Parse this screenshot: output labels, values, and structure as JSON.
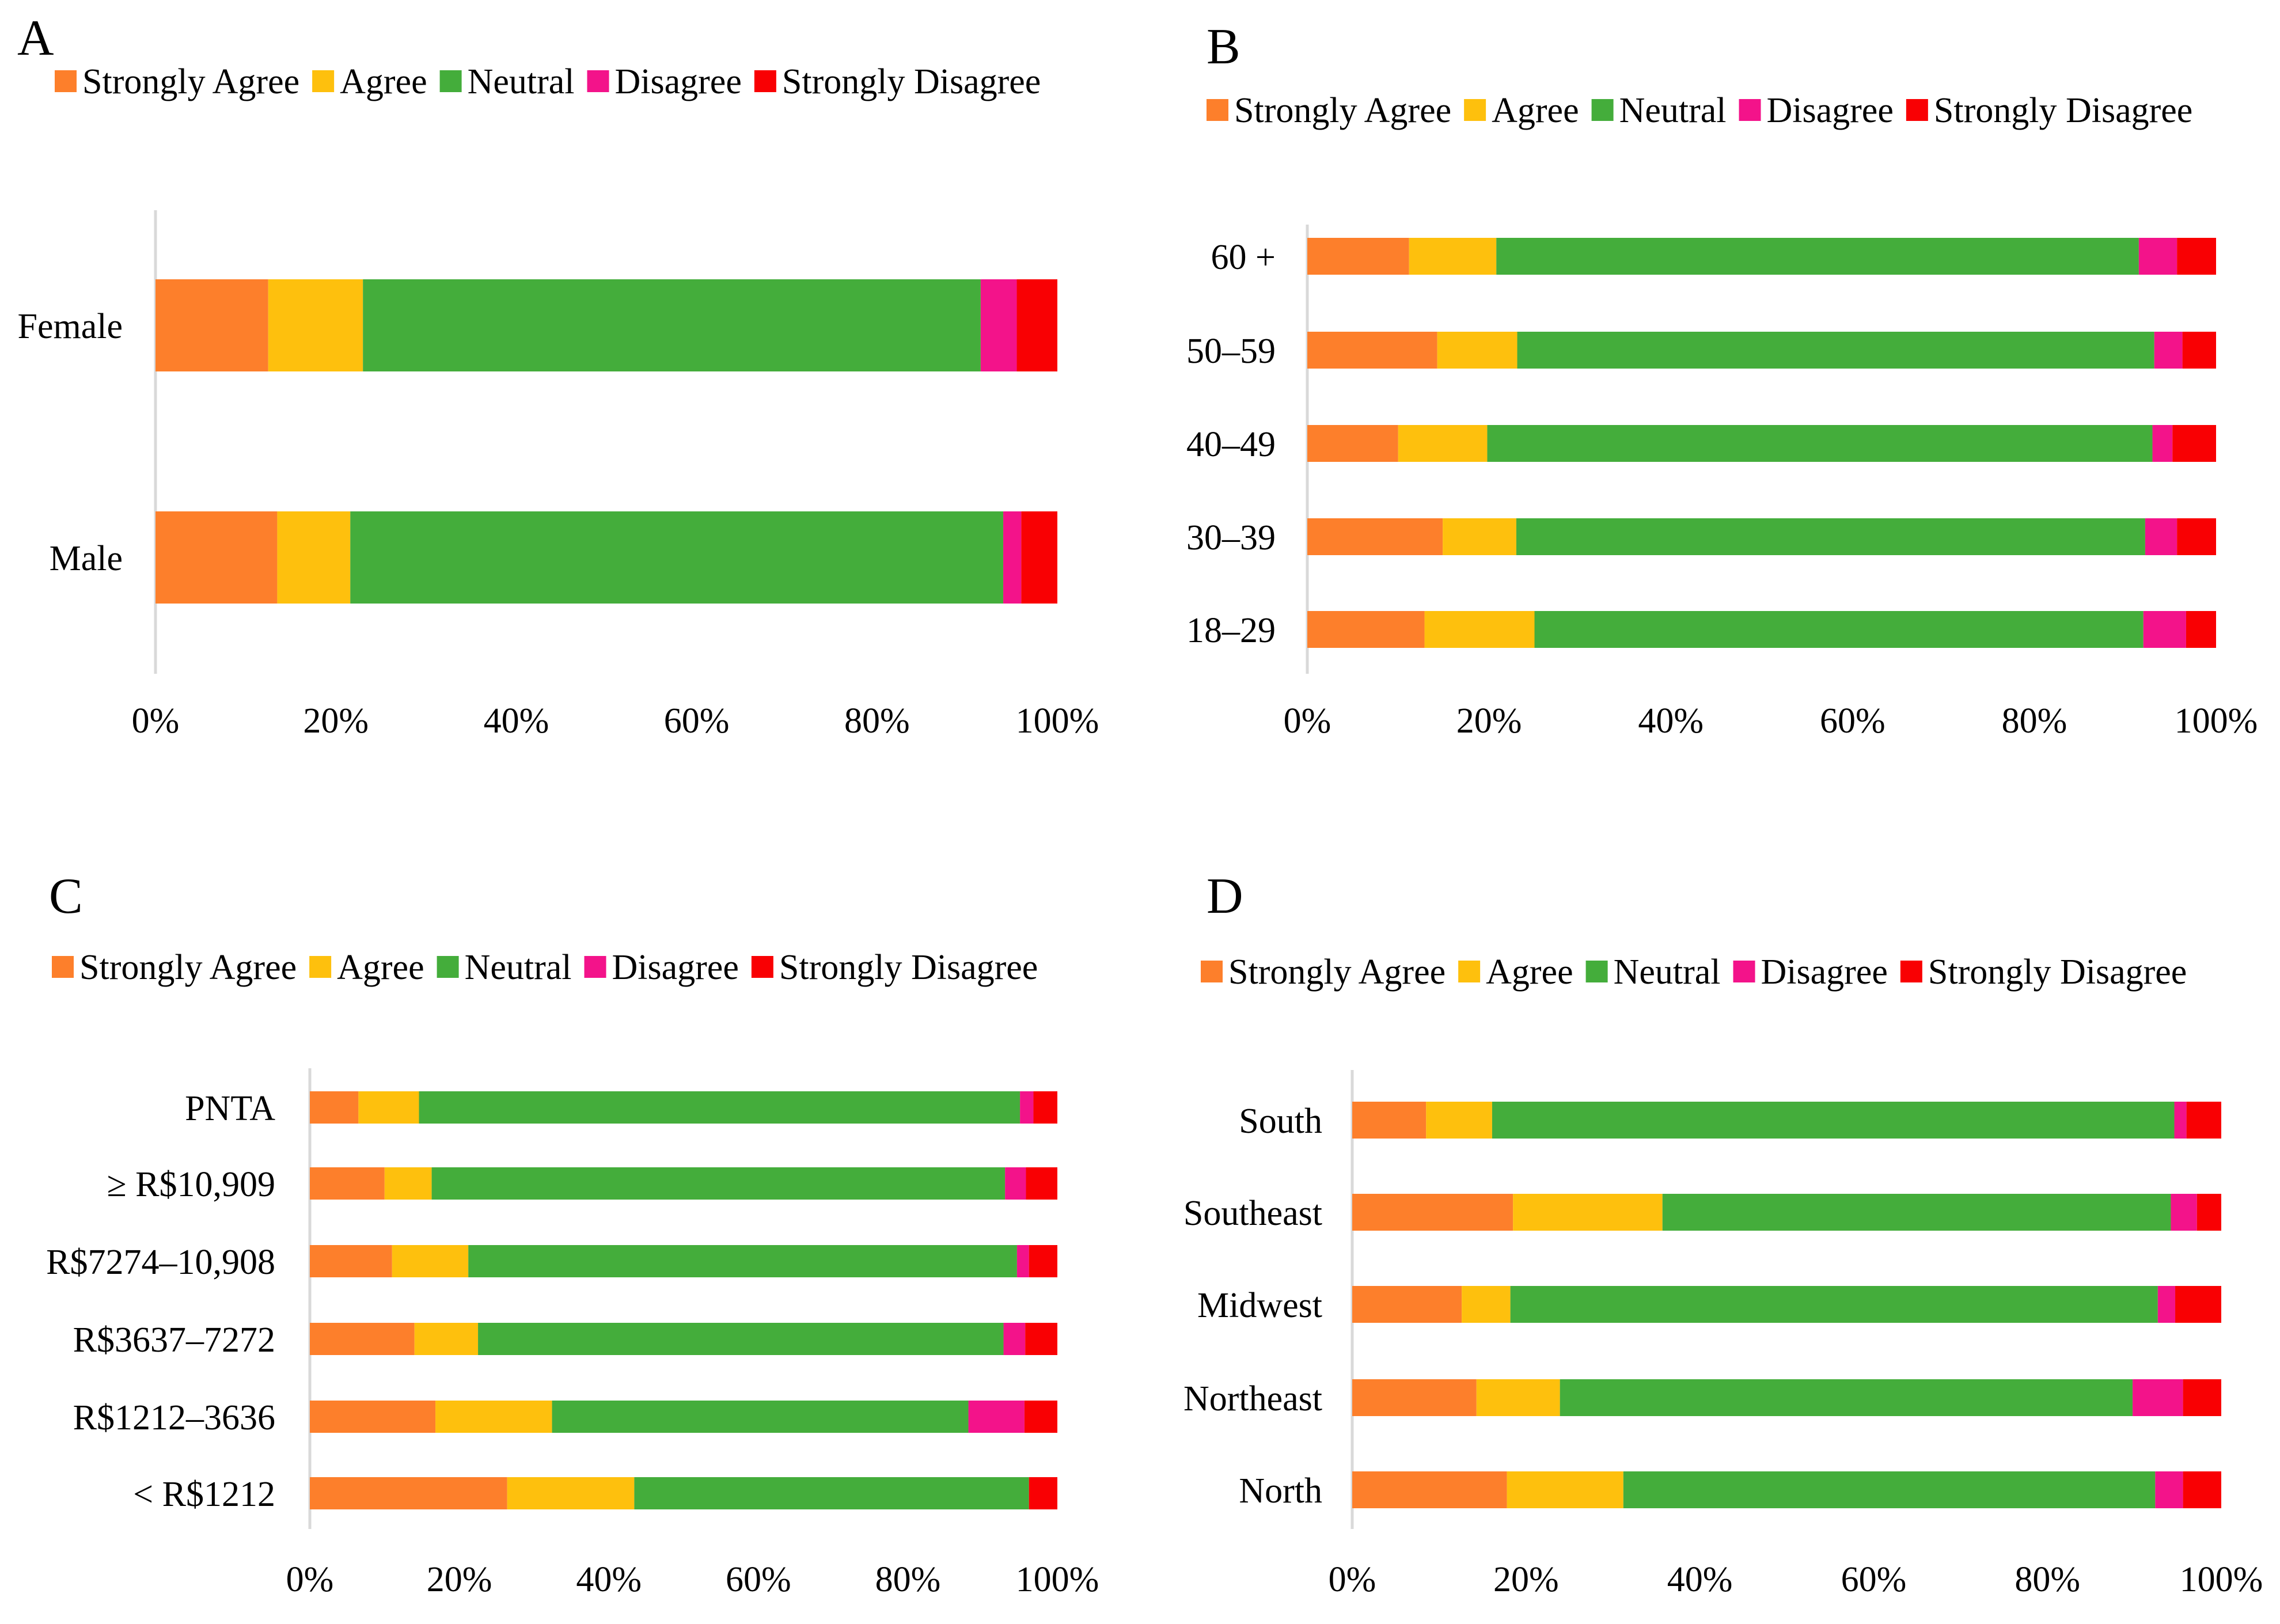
{
  "colors": {
    "Strongly Agree": "#fd7f2b",
    "Agree": "#fec00d",
    "Neutral": "#44ad3b",
    "Disagree": "#f3138a",
    "Strongly Disagree": "#f90003"
  },
  "chart_data": [
    {
      "panel": "A",
      "type": "bar",
      "orientation": "horizontal",
      "stacked": "percent",
      "title": "A",
      "legend": "top",
      "xlim": [
        0,
        100
      ],
      "xticks": [
        "0%",
        "20%",
        "40%",
        "60%",
        "80%",
        "100%"
      ],
      "categories": [
        "Female",
        "Male"
      ],
      "series": [
        {
          "name": "Strongly Agree",
          "values": [
            12.5,
            13.5
          ]
        },
        {
          "name": "Agree",
          "values": [
            10.5,
            8.1
          ]
        },
        {
          "name": "Neutral",
          "values": [
            68.5,
            72.4
          ]
        },
        {
          "name": "Disagree",
          "values": [
            4.0,
            2.0
          ]
        },
        {
          "name": "Strongly Disagree",
          "values": [
            4.5,
            4.0
          ]
        }
      ]
    },
    {
      "panel": "B",
      "type": "bar",
      "orientation": "horizontal",
      "stacked": "percent",
      "title": "B",
      "legend": "top",
      "xlim": [
        0,
        100
      ],
      "xticks": [
        "0%",
        "20%",
        "40%",
        "60%",
        "80%",
        "100%"
      ],
      "categories": [
        "60 +",
        "50–59",
        "40–49",
        "30–39",
        "18–29"
      ],
      "series": [
        {
          "name": "Strongly Agree",
          "values": [
            11.2,
            14.3,
            10.0,
            14.9,
            12.9
          ]
        },
        {
          "name": "Agree",
          "values": [
            9.6,
            8.8,
            9.8,
            8.1,
            12.1
          ]
        },
        {
          "name": "Neutral",
          "values": [
            70.7,
            70.1,
            73.2,
            69.2,
            67.0
          ]
        },
        {
          "name": "Disagree",
          "values": [
            4.2,
            3.1,
            2.2,
            3.5,
            4.7
          ]
        },
        {
          "name": "Strongly Disagree",
          "values": [
            4.3,
            3.7,
            4.8,
            4.3,
            3.3
          ]
        }
      ]
    },
    {
      "panel": "C",
      "type": "bar",
      "orientation": "horizontal",
      "stacked": "percent",
      "title": "C",
      "legend": "top",
      "xlim": [
        0,
        100
      ],
      "xticks": [
        "0%",
        "20%",
        "40%",
        "60%",
        "80%",
        "100%"
      ],
      "categories": [
        "PNTA",
        "≥ R$10,909",
        "R$7274–10,908",
        "R$3637–7272",
        "R$1212–3636",
        "< R$1212"
      ],
      "series": [
        {
          "name": "Strongly Agree",
          "values": [
            6.5,
            10.0,
            11.0,
            14.0,
            16.8,
            26.4
          ]
        },
        {
          "name": "Agree",
          "values": [
            8.1,
            6.3,
            10.2,
            8.5,
            15.6,
            17.0
          ]
        },
        {
          "name": "Neutral",
          "values": [
            80.4,
            76.7,
            73.4,
            70.3,
            55.7,
            52.8
          ]
        },
        {
          "name": "Disagree",
          "values": [
            1.8,
            2.8,
            1.6,
            2.9,
            7.5,
            0.0
          ]
        },
        {
          "name": "Strongly Disagree",
          "values": [
            3.2,
            4.2,
            3.8,
            4.3,
            4.4,
            3.8
          ]
        }
      ]
    },
    {
      "panel": "D",
      "type": "bar",
      "orientation": "horizontal",
      "stacked": "percent",
      "title": "D",
      "legend": "top",
      "xlim": [
        0,
        100
      ],
      "xticks": [
        "0%",
        "20%",
        "40%",
        "60%",
        "80%",
        "100%"
      ],
      "categories": [
        "South",
        "Southeast",
        "Midwest",
        "Northeast",
        "North"
      ],
      "series": [
        {
          "name": "Strongly Agree",
          "values": [
            8.5,
            18.5,
            12.6,
            14.3,
            17.8
          ]
        },
        {
          "name": "Agree",
          "values": [
            7.6,
            17.2,
            5.6,
            9.6,
            13.4
          ]
        },
        {
          "name": "Neutral",
          "values": [
            78.5,
            58.5,
            74.5,
            65.9,
            61.2
          ]
        },
        {
          "name": "Disagree",
          "values": [
            1.4,
            3.0,
            2.0,
            5.8,
            3.2
          ]
        },
        {
          "name": "Strongly Disagree",
          "values": [
            4.0,
            2.8,
            5.3,
            4.4,
            4.4
          ]
        }
      ]
    }
  ]
}
